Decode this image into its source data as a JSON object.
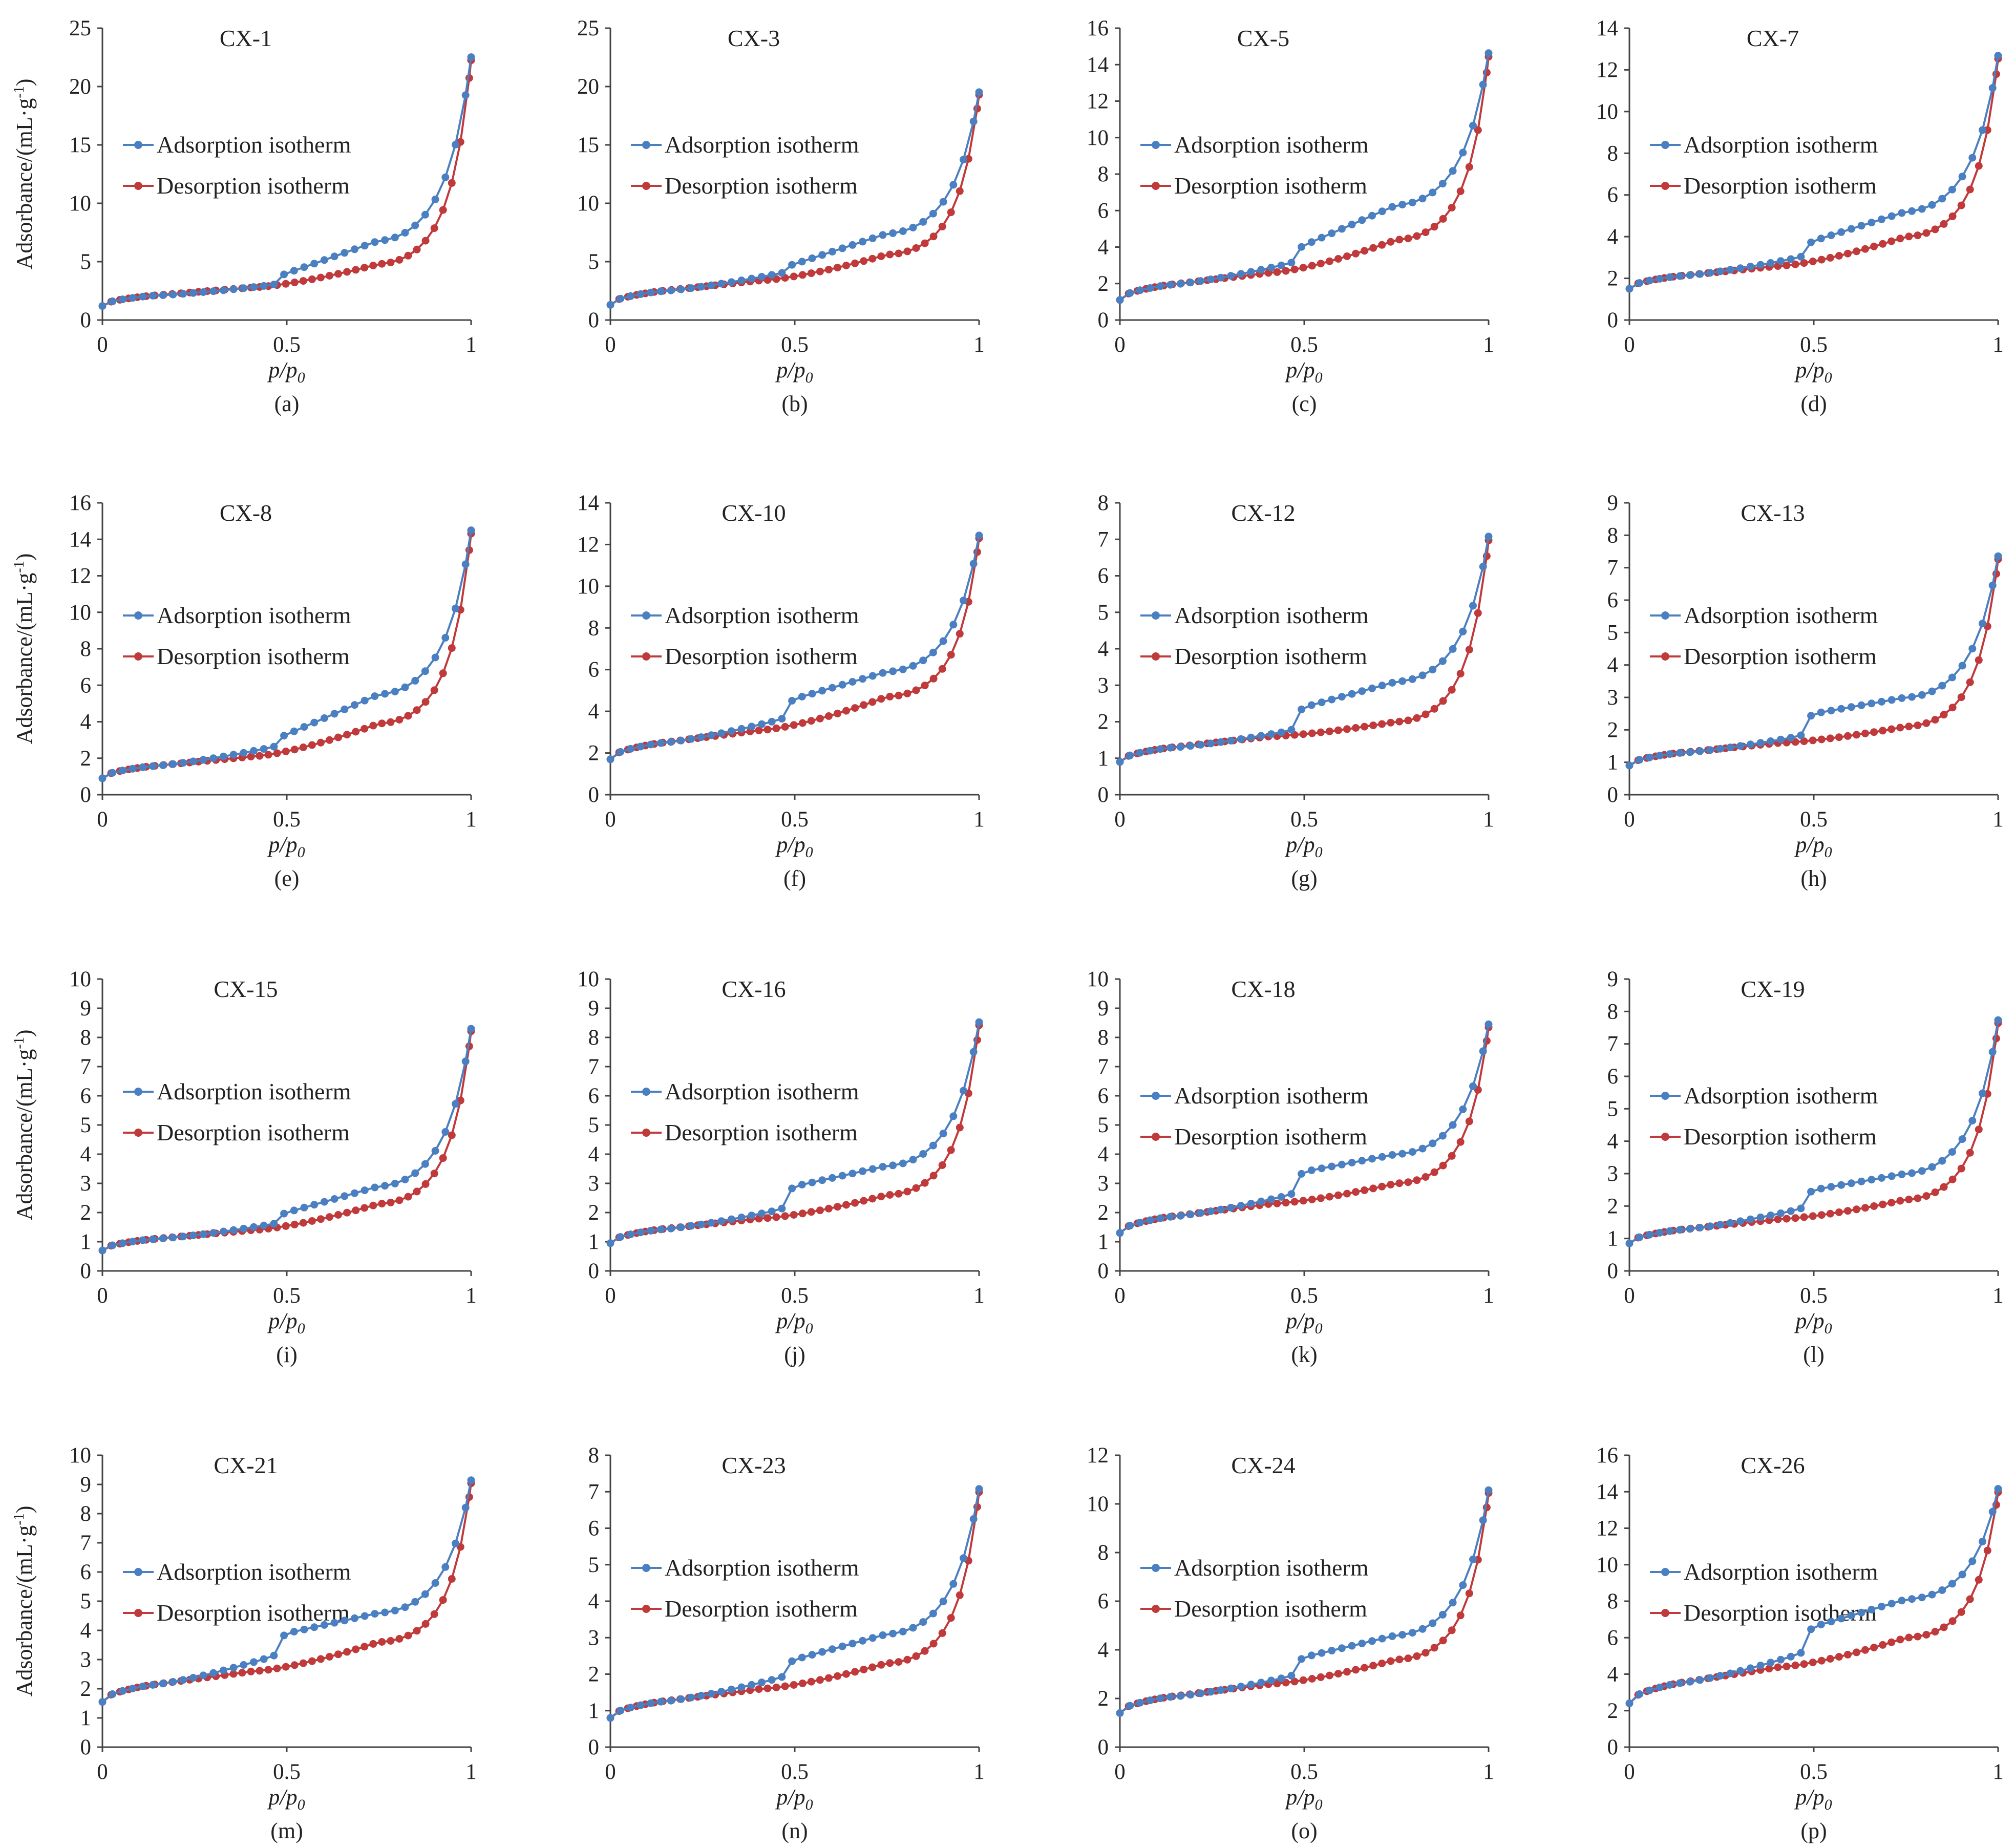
{
  "figure": {
    "xlabel": "p/p",
    "xlabel_sub": "0",
    "ylabel": "Adsorbance/(mL·g",
    "ylabel_sup": "-1",
    "ylabel_end": ")",
    "legend_adsorption": "Adsorption isotherm",
    "legend_desorption": "Desorption isotherm",
    "adsorption_color": "#4a7fc1",
    "desorption_color": "#c0393b"
  },
  "chart_data": [
    {
      "type": "line",
      "title": "CX-1",
      "caption": "(a)",
      "xlim": [
        0,
        1
      ],
      "ylim": [
        0,
        25
      ],
      "yticks": [
        0,
        5,
        10,
        15,
        20,
        25
      ],
      "ytick_labels": [
        "0",
        "5",
        "10",
        "15",
        "20",
        "25"
      ],
      "xticks": [
        0,
        0.5,
        1
      ],
      "xtick_labels": [
        "0",
        "0.5",
        "1"
      ],
      "y_start": 1.2,
      "y_mid": 2.8,
      "jump_from": 3.0,
      "jump_to": 4.0,
      "y_ads_75": 6.8,
      "y_des_75": 4.8,
      "y_max": 23.4,
      "legend": "upper"
    },
    {
      "type": "line",
      "title": "CX-3",
      "caption": "(b)",
      "xlim": [
        0,
        1
      ],
      "ylim": [
        0,
        25
      ],
      "yticks": [
        0,
        5,
        10,
        15,
        20,
        25
      ],
      "ytick_labels": [
        "0",
        "5",
        "10",
        "15",
        "20",
        "25"
      ],
      "xticks": [
        0,
        0.5,
        1
      ],
      "xtick_labels": [
        "0",
        "0.5",
        "1"
      ],
      "y_start": 1.3,
      "y_mid": 3.4,
      "jump_from": 4.0,
      "jump_to": 4.8,
      "y_ads_75": 7.4,
      "y_des_75": 5.6,
      "y_max": 20.2,
      "legend": "upper"
    },
    {
      "type": "line",
      "title": "CX-5",
      "caption": "(c)",
      "xlim": [
        0,
        1
      ],
      "ylim": [
        0,
        16
      ],
      "yticks": [
        0,
        2,
        4,
        6,
        8,
        10,
        12,
        14,
        16
      ],
      "ytick_labels": [
        "0",
        "2",
        "4",
        "6",
        "8",
        "10",
        "12",
        "14",
        "16"
      ],
      "xticks": [
        0,
        0.5,
        1
      ],
      "xtick_labels": [
        "0",
        "0.5",
        "1"
      ],
      "y_start": 1.1,
      "y_mid": 2.6,
      "jump_from": 3.1,
      "jump_to": 4.1,
      "y_ads_75": 6.3,
      "y_des_75": 4.4,
      "y_max": 15.1,
      "legend": "upper"
    },
    {
      "type": "line",
      "title": "CX-7",
      "caption": "(d)",
      "xlim": [
        0,
        1
      ],
      "ylim": [
        0,
        14
      ],
      "yticks": [
        0,
        2,
        4,
        6,
        8,
        10,
        12,
        14
      ],
      "ytick_labels": [
        "0",
        "2",
        "4",
        "6",
        "8",
        "10",
        "12",
        "14"
      ],
      "xticks": [
        0,
        0.5,
        1
      ],
      "xtick_labels": [
        "0",
        "0.5",
        "1"
      ],
      "y_start": 1.5,
      "y_mid": 2.6,
      "jump_from": 3.0,
      "jump_to": 3.8,
      "y_ads_75": 5.2,
      "y_des_75": 4.0,
      "y_max": 13.1,
      "legend": "upper"
    },
    {
      "type": "line",
      "title": "CX-8",
      "caption": "(e)",
      "xlim": [
        0,
        1
      ],
      "ylim": [
        0,
        16
      ],
      "yticks": [
        0,
        2,
        4,
        6,
        8,
        10,
        12,
        14,
        16
      ],
      "ytick_labels": [
        "0",
        "2",
        "4",
        "6",
        "8",
        "10",
        "12",
        "14",
        "16"
      ],
      "xticks": [
        0,
        0.5,
        1
      ],
      "xtick_labels": [
        "0",
        "0.5",
        "1"
      ],
      "y_start": 0.9,
      "y_mid": 2.1,
      "jump_from": 2.6,
      "jump_to": 3.3,
      "y_ads_75": 5.5,
      "y_des_75": 3.9,
      "y_max": 15.0,
      "legend": "middle"
    },
    {
      "type": "line",
      "title": "CX-10",
      "caption": "(f)",
      "xlim": [
        0,
        1
      ],
      "ylim": [
        0,
        14
      ],
      "yticks": [
        0,
        2,
        4,
        6,
        8,
        10,
        12,
        14
      ],
      "ytick_labels": [
        "0",
        "2",
        "4",
        "6",
        "8",
        "10",
        "12",
        "14"
      ],
      "xticks": [
        0,
        0.5,
        1
      ],
      "xtick_labels": [
        "0",
        "0.5",
        "1"
      ],
      "y_start": 1.7,
      "y_mid": 3.1,
      "jump_from": 3.6,
      "jump_to": 4.6,
      "y_ads_75": 5.9,
      "y_des_75": 4.7,
      "y_max": 12.8,
      "legend": "middle"
    },
    {
      "type": "line",
      "title": "CX-12",
      "caption": "(g)",
      "xlim": [
        0,
        1
      ],
      "ylim": [
        0,
        8
      ],
      "yticks": [
        0,
        1,
        2,
        3,
        4,
        5,
        6,
        7,
        8
      ],
      "ytick_labels": [
        "0",
        "1",
        "2",
        "3",
        "4",
        "5",
        "6",
        "7",
        "8"
      ],
      "xticks": [
        0,
        0.5,
        1
      ],
      "xtick_labels": [
        "0",
        "0.5",
        "1"
      ],
      "y_start": 0.9,
      "y_mid": 1.6,
      "jump_from": 1.75,
      "jump_to": 2.4,
      "y_ads_75": 3.1,
      "y_des_75": 2.0,
      "y_max": 7.3,
      "legend": "middle"
    },
    {
      "type": "line",
      "title": "CX-13",
      "caption": "(h)",
      "xlim": [
        0,
        1
      ],
      "ylim": [
        0,
        9
      ],
      "yticks": [
        0,
        1,
        2,
        3,
        4,
        5,
        6,
        7,
        8,
        9
      ],
      "ytick_labels": [
        "0",
        "1",
        "2",
        "3",
        "4",
        "5",
        "6",
        "7",
        "8",
        "9"
      ],
      "xticks": [
        0,
        0.5,
        1
      ],
      "xtick_labels": [
        "0",
        "0.5",
        "1"
      ],
      "y_start": 0.9,
      "y_mid": 1.6,
      "jump_from": 1.8,
      "jump_to": 2.5,
      "y_ads_75": 3.0,
      "y_des_75": 2.1,
      "y_max": 7.6,
      "legend": "middle"
    },
    {
      "type": "line",
      "title": "CX-15",
      "caption": "(i)",
      "xlim": [
        0,
        1
      ],
      "ylim": [
        0,
        10
      ],
      "yticks": [
        0,
        1,
        2,
        3,
        4,
        5,
        6,
        7,
        8,
        9,
        10
      ],
      "ytick_labels": [
        "0",
        "1",
        "2",
        "3",
        "4",
        "5",
        "6",
        "7",
        "8",
        "9",
        "10"
      ],
      "xticks": [
        0,
        0.5,
        1
      ],
      "xtick_labels": [
        "0",
        "0.5",
        "1"
      ],
      "y_start": 0.7,
      "y_mid": 1.4,
      "jump_from": 1.6,
      "jump_to": 2.0,
      "y_ads_75": 2.9,
      "y_des_75": 2.3,
      "y_max": 8.6,
      "legend": "middle"
    },
    {
      "type": "line",
      "title": "CX-16",
      "caption": "(j)",
      "xlim": [
        0,
        1
      ],
      "ylim": [
        0,
        10
      ],
      "yticks": [
        0,
        1,
        2,
        3,
        4,
        5,
        6,
        7,
        8,
        9,
        10
      ],
      "ytick_labels": [
        "0",
        "1",
        "2",
        "3",
        "4",
        "5",
        "6",
        "7",
        "8",
        "9",
        "10"
      ],
      "xticks": [
        0,
        0.5,
        1
      ],
      "xtick_labels": [
        "0",
        "0.5",
        "1"
      ],
      "y_start": 0.95,
      "y_mid": 1.8,
      "jump_from": 2.1,
      "jump_to": 2.9,
      "y_ads_75": 3.6,
      "y_des_75": 2.6,
      "y_max": 8.8,
      "legend": "middle"
    },
    {
      "type": "line",
      "title": "CX-18",
      "caption": "(k)",
      "xlim": [
        0,
        1
      ],
      "ylim": [
        0,
        10
      ],
      "yticks": [
        0,
        1,
        2,
        3,
        4,
        5,
        6,
        7,
        8,
        9,
        10
      ],
      "ytick_labels": [
        "0",
        "1",
        "2",
        "3",
        "4",
        "5",
        "6",
        "7",
        "8",
        "9",
        "10"
      ],
      "xticks": [
        0,
        0.5,
        1
      ],
      "xtick_labels": [
        "0",
        "0.5",
        "1"
      ],
      "y_start": 1.3,
      "y_mid": 2.3,
      "jump_from": 2.6,
      "jump_to": 3.4,
      "y_ads_75": 4.0,
      "y_des_75": 3.0,
      "y_max": 8.7,
      "legend": "upper"
    },
    {
      "type": "line",
      "title": "CX-19",
      "caption": "(l)",
      "xlim": [
        0,
        1
      ],
      "ylim": [
        0,
        9
      ],
      "yticks": [
        0,
        1,
        2,
        3,
        4,
        5,
        6,
        7,
        8,
        9
      ],
      "ytick_labels": [
        "0",
        "1",
        "2",
        "3",
        "4",
        "5",
        "6",
        "7",
        "8",
        "9"
      ],
      "xticks": [
        0,
        0.5,
        1
      ],
      "xtick_labels": [
        "0",
        "0.5",
        "1"
      ],
      "y_start": 0.85,
      "y_mid": 1.6,
      "jump_from": 1.9,
      "jump_to": 2.5,
      "y_ads_75": 3.0,
      "y_des_75": 2.2,
      "y_max": 8.0,
      "legend": "upper"
    },
    {
      "type": "line",
      "title": "CX-21",
      "caption": "(m)",
      "xlim": [
        0,
        1
      ],
      "ylim": [
        0,
        10
      ],
      "yticks": [
        0,
        1,
        2,
        3,
        4,
        5,
        6,
        7,
        8,
        9,
        10
      ],
      "ytick_labels": [
        "0",
        "1",
        "2",
        "3",
        "4",
        "5",
        "6",
        "7",
        "8",
        "9",
        "10"
      ],
      "xticks": [
        0,
        0.5,
        1
      ],
      "xtick_labels": [
        "0",
        "0.5",
        "1"
      ],
      "y_start": 1.55,
      "y_mid": 2.6,
      "jump_from": 3.1,
      "jump_to": 3.9,
      "y_ads_75": 4.6,
      "y_des_75": 3.6,
      "y_max": 9.4,
      "legend": "upper"
    },
    {
      "type": "line",
      "title": "CX-23",
      "caption": "(n)",
      "xlim": [
        0,
        1
      ],
      "ylim": [
        0,
        8
      ],
      "yticks": [
        0,
        1,
        2,
        3,
        4,
        5,
        6,
        7,
        8
      ],
      "ytick_labels": [
        "0",
        "1",
        "2",
        "3",
        "4",
        "5",
        "6",
        "7",
        "8"
      ],
      "xticks": [
        0,
        0.5,
        1
      ],
      "xtick_labels": [
        "0",
        "0.5",
        "1"
      ],
      "y_start": 0.8,
      "y_mid": 1.6,
      "jump_from": 1.9,
      "jump_to": 2.4,
      "y_ads_75": 3.1,
      "y_des_75": 2.3,
      "y_max": 7.3,
      "legend": "middle"
    },
    {
      "type": "line",
      "title": "CX-24",
      "caption": "(o)",
      "xlim": [
        0,
        1
      ],
      "ylim": [
        0,
        12
      ],
      "yticks": [
        0,
        2,
        4,
        6,
        8,
        10,
        12
      ],
      "ytick_labels": [
        "0",
        "2",
        "4",
        "6",
        "8",
        "10",
        "12"
      ],
      "xticks": [
        0,
        0.5,
        1
      ],
      "xtick_labels": [
        "0",
        "0.5",
        "1"
      ],
      "y_start": 1.4,
      "y_mid": 2.6,
      "jump_from": 2.9,
      "jump_to": 3.7,
      "y_ads_75": 4.6,
      "y_des_75": 3.6,
      "y_max": 10.9,
      "legend": "middle"
    },
    {
      "type": "line",
      "title": "CX-26",
      "caption": "(p)",
      "xlim": [
        0,
        1
      ],
      "ylim": [
        0,
        16
      ],
      "yticks": [
        0,
        2,
        4,
        6,
        8,
        10,
        12,
        14,
        16
      ],
      "ytick_labels": [
        "0",
        "2",
        "4",
        "6",
        "8",
        "10",
        "12",
        "14",
        "16"
      ],
      "xticks": [
        0,
        0.5,
        1
      ],
      "xtick_labels": [
        "0",
        "0.5",
        "1"
      ],
      "y_start": 2.4,
      "y_mid": 4.4,
      "jump_from": 5.1,
      "jump_to": 6.6,
      "y_ads_75": 8.1,
      "y_des_75": 6.0,
      "y_max": 14.5,
      "legend": "upper"
    }
  ]
}
